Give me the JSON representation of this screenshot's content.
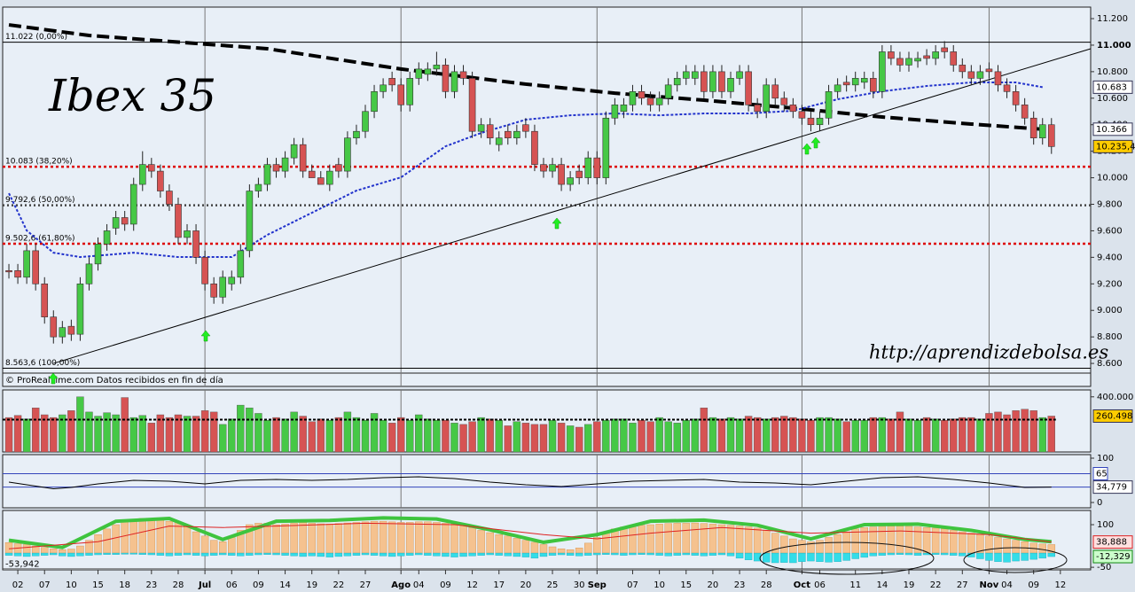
{
  "chart_data": {
    "type": "candlestick",
    "title": "Ibex 35",
    "watermark": "http://aprendizdebolsa.es",
    "source": "© ProRealTime.com  Datos recibidos en fin de día",
    "up_color": "#46c846",
    "down_color": "#d65353",
    "xlim": [
      -0.7,
      121.4
    ],
    "xticks": [
      {
        "value": 1,
        "label": "02"
      },
      {
        "value": 4,
        "label": "07"
      },
      {
        "value": 7,
        "label": "10"
      },
      {
        "value": 10,
        "label": "15"
      },
      {
        "value": 13,
        "label": "18"
      },
      {
        "value": 16,
        "label": "23"
      },
      {
        "value": 19,
        "label": "28"
      },
      {
        "value": 22,
        "label": "Jul"
      },
      {
        "value": 25,
        "label": "06"
      },
      {
        "value": 28,
        "label": "09"
      },
      {
        "value": 31,
        "label": "14"
      },
      {
        "value": 34,
        "label": "19"
      },
      {
        "value": 37,
        "label": "22"
      },
      {
        "value": 40,
        "label": "27"
      },
      {
        "value": 44,
        "label": "Ago"
      },
      {
        "value": 46,
        "label": "04"
      },
      {
        "value": 49,
        "label": "09"
      },
      {
        "value": 52,
        "label": "12"
      },
      {
        "value": 55,
        "label": "17"
      },
      {
        "value": 58,
        "label": "20"
      },
      {
        "value": 61,
        "label": "25"
      },
      {
        "value": 64,
        "label": "30"
      },
      {
        "value": 66,
        "label": "Sep"
      },
      {
        "value": 70,
        "label": "07"
      },
      {
        "value": 73,
        "label": "10"
      },
      {
        "value": 76,
        "label": "15"
      },
      {
        "value": 79,
        "label": "20"
      },
      {
        "value": 82,
        "label": "23"
      },
      {
        "value": 85,
        "label": "28"
      },
      {
        "value": 89,
        "label": "Oct"
      },
      {
        "value": 91,
        "label": "06"
      },
      {
        "value": 95,
        "label": "11"
      },
      {
        "value": 98,
        "label": "14"
      },
      {
        "value": 101,
        "label": "19"
      },
      {
        "value": 104,
        "label": "22"
      },
      {
        "value": 107,
        "label": "27"
      },
      {
        "value": 110,
        "label": "Nov"
      },
      {
        "value": 112,
        "label": "04"
      },
      {
        "value": 115,
        "label": "09"
      },
      {
        "value": 118,
        "label": "12"
      }
    ],
    "ylim": [
      8547,
      11287
    ],
    "yticks": [
      {
        "value": 11200,
        "label": "11.200"
      },
      {
        "value": 11000,
        "label": "11.000"
      },
      {
        "value": 10800,
        "label": "10.800"
      },
      {
        "value": 10600,
        "label": "10.600"
      },
      {
        "value": 10400,
        "label": "10.400"
      },
      {
        "value": 10200,
        "label": "10.200"
      },
      {
        "value": 10000,
        "label": "10.000"
      },
      {
        "value": 9800,
        "label": "9.800"
      },
      {
        "value": 9600,
        "label": "9.600"
      },
      {
        "value": 9400,
        "label": "9.400"
      },
      {
        "value": 9200,
        "label": "9.200"
      },
      {
        "value": 9000,
        "label": "9.000"
      },
      {
        "value": 8800,
        "label": "8.800"
      },
      {
        "value": 8600,
        "label": "8.600"
      }
    ],
    "open": [
      9300,
      9300,
      9250,
      9450,
      9200,
      8950,
      8800,
      8880,
      8820,
      9200,
      9350,
      9500,
      9620,
      9700,
      9650,
      9950,
      10100,
      10050,
      9900,
      9800,
      9550,
      9600,
      9400,
      9200,
      9100,
      9200,
      9250,
      9450,
      9900,
      9950,
      10100,
      10050,
      10150,
      10250,
      10050,
      10000,
      9950,
      10100,
      10050,
      10300,
      10350,
      10500,
      10650,
      10750,
      10700,
      10550,
      10750,
      10780,
      10820,
      10850,
      10650,
      10800,
      10750,
      10350,
      10400,
      10250,
      10350,
      10300,
      10400,
      10350,
      10100,
      10050,
      10100,
      9950,
      10050,
      10000,
      10150,
      10000,
      10450,
      10500,
      10550,
      10650,
      10600,
      10550,
      10600,
      10700,
      10750,
      10750,
      10800,
      10650,
      10800,
      10650,
      10750,
      10800,
      10550,
      10500,
      10700,
      10600,
      10550,
      10500,
      10450,
      10400,
      10450,
      10650,
      10720,
      10700,
      10720,
      10750,
      10650,
      10950,
      10900,
      10850,
      10880,
      10920,
      10900,
      10980,
      10950,
      10850,
      10800,
      10750,
      10820,
      10800,
      10700,
      10650,
      10550,
      10450,
      10300,
      10400
    ],
    "high": [
      9350,
      9350,
      9500,
      9500,
      9250,
      9000,
      8920,
      8930,
      9250,
      9400,
      9550,
      9650,
      9750,
      9750,
      10000,
      10200,
      10150,
      10100,
      9950,
      9850,
      9650,
      9650,
      9450,
      9250,
      9300,
      9300,
      9500,
      9950,
      10000,
      10150,
      10150,
      10200,
      10300,
      10300,
      10100,
      10050,
      10100,
      10150,
      10350,
      10400,
      10550,
      10700,
      10750,
      10800,
      10750,
      10800,
      10870,
      10870,
      10950,
      10900,
      10850,
      10850,
      10800,
      10450,
      10450,
      10350,
      10400,
      10400,
      10450,
      10400,
      10150,
      10150,
      10150,
      10050,
      10100,
      10200,
      10200,
      10500,
      10600,
      10600,
      10700,
      10700,
      10650,
      10650,
      10750,
      10800,
      10850,
      10850,
      10850,
      10850,
      10850,
      10800,
      10850,
      10850,
      10600,
      10750,
      10750,
      10650,
      10600,
      10550,
      10500,
      10500,
      10700,
      10750,
      10770,
      10800,
      10800,
      10800,
      11000,
      11000,
      10950,
      10950,
      10950,
      10970,
      11000,
      11030,
      11000,
      10900,
      10850,
      10850,
      10870,
      10850,
      10750,
      10700,
      10600,
      10500,
      10450,
      10450
    ],
    "low": [
      9240,
      9200,
      9200,
      9150,
      8900,
      8750,
      8750,
      8770,
      8770,
      9150,
      9300,
      9450,
      9570,
      9600,
      9600,
      9900,
      10000,
      9850,
      9750,
      9500,
      9500,
      9350,
      9150,
      9050,
      9050,
      9150,
      9200,
      9400,
      9850,
      9900,
      10000,
      10000,
      10100,
      10000,
      10000,
      9950,
      9900,
      10000,
      10000,
      10250,
      10300,
      10450,
      10600,
      10650,
      10500,
      10500,
      10700,
      10730,
      10770,
      10600,
      10600,
      10700,
      10300,
      10300,
      10250,
      10200,
      10250,
      10250,
      10300,
      10050,
      10000,
      10000,
      9900,
      9900,
      9950,
      9950,
      9950,
      9950,
      10400,
      10450,
      10500,
      10550,
      10500,
      10500,
      10550,
      10650,
      10700,
      10700,
      10600,
      10600,
      10600,
      10600,
      10700,
      10500,
      10450,
      10450,
      10550,
      10500,
      10450,
      10400,
      10350,
      10350,
      10400,
      10600,
      10650,
      10650,
      10670,
      10600,
      10600,
      10850,
      10800,
      10800,
      10830,
      10850,
      10850,
      10900,
      10800,
      10750,
      10700,
      10700,
      10750,
      10650,
      10600,
      10500,
      10400,
      10250,
      10250,
      10180
    ],
    "close": [
      9290,
      9250,
      9450,
      9200,
      8950,
      8800,
      8870,
      8820,
      9200,
      9350,
      9500,
      9600,
      9700,
      9650,
      9950,
      10100,
      10050,
      9900,
      9800,
      9550,
      9600,
      9400,
      9200,
      9100,
      9250,
      9250,
      9450,
      9900,
      9950,
      10100,
      10050,
      10150,
      10250,
      10050,
      10000,
      9950,
      10050,
      10050,
      10300,
      10350,
      10500,
      10650,
      10700,
      10700,
      10550,
      10750,
      10820,
      10820,
      10850,
      10650,
      10800,
      10750,
      10350,
      10400,
      10300,
      10300,
      10300,
      10350,
      10350,
      10100,
      10050,
      10100,
      9950,
      10000,
      10000,
      10150,
      10000,
      10450,
      10550,
      10550,
      10650,
      10600,
      10550,
      10600,
      10700,
      10750,
      10800,
      10800,
      10650,
      10800,
      10650,
      10750,
      10800,
      10550,
      10500,
      10700,
      10600,
      10550,
      10500,
      10450,
      10400,
      10450,
      10650,
      10700,
      10700,
      10750,
      10750,
      10650,
      10950,
      10900,
      10850,
      10900,
      10900,
      10900,
      10950,
      10950,
      10850,
      10800,
      10750,
      10800,
      10800,
      10700,
      10650,
      10550,
      10450,
      10300,
      10400,
      10235.4
    ],
    "last_label": "10.235,4",
    "lines": [
      {
        "color": "#000000",
        "dash": "14 6",
        "width": 4,
        "x": [
          0,
          9,
          29,
          44,
          58,
          68,
          78,
          88,
          98,
          108,
          116
        ],
        "values": [
          11153,
          11073,
          10973,
          10820,
          10706,
          10638,
          10585,
          10525,
          10458,
          10405,
          10366
        ],
        "value_label": "10.366"
      },
      {
        "color": "#2233cc",
        "dash": "3 2",
        "width": 2,
        "x": [
          0,
          2,
          5,
          8,
          14,
          19,
          25,
          29,
          34,
          39,
          44,
          49,
          53,
          58,
          63,
          68,
          73,
          78,
          83,
          88,
          93,
          98,
          103,
          108,
          113,
          116
        ],
        "values": [
          9883,
          9602,
          9435,
          9402,
          9435,
          9402,
          9402,
          9569,
          9736,
          9903,
          10003,
          10237,
          10338,
          10438,
          10471,
          10485,
          10471,
          10485,
          10485,
          10505,
          10592,
          10652,
          10692,
          10719,
          10719,
          10683
        ],
        "value_label": "10.683"
      },
      {
        "color": "#000000",
        "dash": "",
        "width": 1,
        "x": [
          5,
          121.4
        ],
        "values": [
          8600,
          10973
        ]
      }
    ],
    "fib_levels": [
      {
        "value": 11022,
        "label": "11.022 (0,00%)",
        "color": "#000000",
        "dash": ""
      },
      {
        "value": 10083,
        "label": "10.083 (38,20%)",
        "color": "#dd0000",
        "dash": "3 3"
      },
      {
        "value": 9792.6,
        "label": "9.792,6 (50,00%)",
        "color": "#444444",
        "dash": "2 3"
      },
      {
        "value": 9502.6,
        "label": "9.502,6 (61,80%)",
        "color": "#dd0000",
        "dash": "3 3"
      },
      {
        "value": 8563.6,
        "label": "8.563,6 (100,00%)",
        "color": "#000000",
        "dash": ""
      }
    ],
    "volume": {
      "ylim": [
        0,
        450000
      ],
      "yticks": [
        {
          "value": 400000,
          "label": "400.000"
        }
      ],
      "values": [
        250000,
        265000,
        240000,
        320000,
        270000,
        250000,
        270000,
        300000,
        400000,
        290000,
        260000,
        285000,
        270000,
        395000,
        250000,
        265000,
        210000,
        270000,
        250000,
        270000,
        260000,
        260000,
        300000,
        290000,
        200000,
        240000,
        340000,
        320000,
        280000,
        230000,
        250000,
        240000,
        290000,
        260000,
        220000,
        240000,
        230000,
        250000,
        290000,
        250000,
        230000,
        280000,
        230000,
        210000,
        250000,
        230000,
        270000,
        240000,
        230000,
        230000,
        210000,
        200000,
        220000,
        250000,
        240000,
        230000,
        190000,
        220000,
        210000,
        200000,
        200000,
        230000,
        210000,
        190000,
        180000,
        200000,
        220000,
        230000,
        240000,
        240000,
        210000,
        230000,
        220000,
        250000,
        220000,
        210000,
        230000,
        240000,
        320000,
        250000,
        240000,
        250000,
        240000,
        260000,
        250000,
        240000,
        250000,
        260000,
        250000,
        240000,
        230000,
        250000,
        250000,
        240000,
        220000,
        230000,
        230000,
        250000,
        250000,
        240000,
        290000,
        240000,
        230000,
        250000,
        240000,
        230000,
        240000,
        250000,
        250000,
        240000,
        280000,
        290000,
        270000,
        300000,
        310000,
        300000,
        250000,
        260498
      ],
      "last_label": "260.498",
      "average": 235000
    },
    "rsi": {
      "ylim": [
        -12,
        108
      ],
      "yticks": [
        100,
        0
      ],
      "level": 65,
      "x": [
        0,
        2,
        5,
        7,
        10,
        14,
        18,
        22,
        26,
        30,
        34,
        38,
        42,
        46,
        50,
        54,
        58,
        62,
        66,
        70,
        74,
        78,
        82,
        86,
        90,
        94,
        98,
        102,
        106,
        110,
        114,
        117
      ],
      "values": [
        46,
        40,
        31,
        34,
        42,
        50,
        48,
        42,
        50,
        52,
        50,
        52,
        56,
        58,
        54,
        46,
        40,
        36,
        42,
        48,
        50,
        52,
        46,
        44,
        40,
        48,
        56,
        58,
        52,
        44,
        34,
        34.779
      ],
      "last_label": "34,779",
      "color": "#000000"
    },
    "oscillator": {
      "ylim": [
        -59,
        150
      ],
      "yticks": [
        100,
        -50
      ],
      "histogram": [
        37,
        33,
        30,
        25,
        20,
        15,
        12,
        14,
        25,
        45,
        65,
        85,
        100,
        112,
        118,
        122,
        120,
        115,
        112,
        108,
        95,
        75,
        60,
        45,
        40,
        55,
        80,
        100,
        105,
        105,
        100,
        102,
        105,
        108,
        105,
        103,
        102,
        104,
        106,
        108,
        110,
        112,
        112,
        110,
        108,
        108,
        110,
        110,
        108,
        105,
        103,
        100,
        90,
        80,
        72,
        65,
        60,
        52,
        45,
        38,
        30,
        22,
        15,
        12,
        18,
        35,
        55,
        70,
        85,
        92,
        95,
        98,
        100,
        102,
        104,
        105,
        105,
        106,
        104,
        102,
        100,
        98,
        95,
        92,
        88,
        80,
        70,
        60,
        50,
        45,
        40,
        45,
        55,
        65,
        75,
        85,
        90,
        92,
        94,
        95,
        95,
        94,
        92,
        90,
        88,
        85,
        80,
        75,
        70,
        65,
        60,
        55,
        50,
        45,
        40,
        35,
        32,
        30
      ],
      "histogram_color": "#f5c28f",
      "negative": [
        -8,
        -10,
        -12,
        -10,
        -8,
        -6,
        -10,
        -12,
        -10,
        -8,
        -6,
        -5,
        -5,
        -4,
        -4,
        -5,
        -6,
        -8,
        -10,
        -8,
        -6,
        -8,
        -10,
        -8,
        -6,
        -8,
        -10,
        -8,
        -6,
        -5,
        -6,
        -8,
        -10,
        -12,
        -10,
        -12,
        -14,
        -12,
        -10,
        -8,
        -6,
        -8,
        -10,
        -12,
        -10,
        -8,
        -6,
        -8,
        -10,
        -12,
        -14,
        -12,
        -10,
        -8,
        -6,
        -8,
        -10,
        -12,
        -14,
        -18,
        -12,
        -8,
        -6,
        -8,
        -10,
        -8,
        -6,
        -5,
        -6,
        -8,
        -6,
        -5,
        -6,
        -8,
        -10,
        -8,
        -6,
        -8,
        -10,
        -8,
        -6,
        -10,
        -18,
        -24,
        -28,
        -32,
        -34,
        -33,
        -34,
        -30,
        -28,
        -30,
        -32,
        -30,
        -26,
        -20,
        -15,
        -10,
        -8,
        -6,
        -5,
        -6,
        -8,
        -6,
        -5,
        -6,
        -8,
        -10,
        -14,
        -20,
        -26,
        -30,
        -32,
        -28,
        -26,
        -22,
        -18,
        -12.329
      ],
      "negative_color": "#33dde8",
      "negative_label": "-12,329",
      "upper": {
        "x": [
          0,
          6,
          12,
          18,
          24,
          30,
          36,
          42,
          48,
          54,
          60,
          66,
          72,
          78,
          84,
          90,
          96,
          102,
          108,
          114,
          117
        ],
        "values": [
          45,
          20,
          112,
          122,
          48,
          112,
          115,
          124,
          120,
          82,
          38,
          65,
          112,
          116,
          98,
          50,
          100,
          102,
          80,
          48,
          40
        ],
        "color": "#3ec43e"
      },
      "signal": {
        "x": [
          0,
          10,
          18,
          24,
          30,
          40,
          50,
          60,
          66,
          72,
          80,
          90,
          100,
          110,
          117
        ],
        "values": [
          15,
          40,
          95,
          90,
          95,
          105,
          100,
          65,
          50,
          70,
          90,
          70,
          78,
          65,
          38.888
        ],
        "label": "38,888",
        "color": "#dd2222"
      },
      "min": {
        "value": -53.942,
        "label": "-53,942"
      }
    }
  }
}
